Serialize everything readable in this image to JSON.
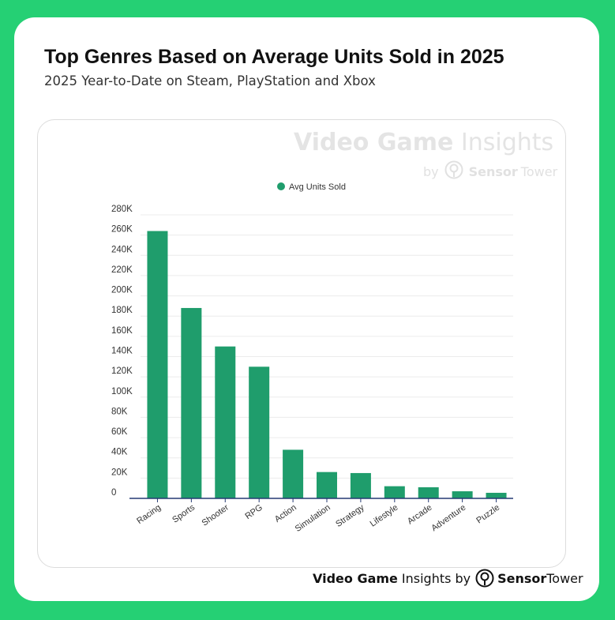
{
  "header": {
    "title": "Top Genres Based on Average Units Sold in 2025",
    "subtitle": "2025 Year-to-Date on Steam, PlayStation and Xbox"
  },
  "watermark": {
    "brand_bold": "Video Game",
    "brand_light": "Insights",
    "by": "by",
    "sensor": "Sensor",
    "tower": "Tower",
    "logo_icon": "sensor-tower-logo-icon"
  },
  "footer": {
    "brand_bold": "Video Game",
    "brand_light": "Insights",
    "by": "by",
    "sensor": "Sensor",
    "tower": "Tower",
    "logo_icon": "sensor-tower-logo-icon"
  },
  "colors": {
    "background": "#25d074",
    "bar": "#1f9d6c",
    "axis": "#253a73",
    "grid": "#ececec"
  },
  "chart_data": {
    "type": "bar",
    "title": "Top Genres Based on Average Units Sold in 2025",
    "subtitle": "2025 Year-to-Date on Steam, PlayStation and Xbox",
    "categories": [
      "Racing",
      "Sports",
      "Shooter",
      "RPG",
      "Action",
      "Simulation",
      "Strategy",
      "Lifestyle",
      "Arcade",
      "Adventure",
      "Puzzle"
    ],
    "series": [
      {
        "name": "Avg Units Sold",
        "values": [
          264000,
          188000,
          150000,
          130000,
          48000,
          26000,
          25000,
          12000,
          11000,
          7000,
          5500
        ]
      }
    ],
    "ylim": [
      0,
      280000
    ],
    "yticks": [
      0,
      20000,
      40000,
      60000,
      80000,
      100000,
      120000,
      140000,
      160000,
      180000,
      200000,
      220000,
      240000,
      260000,
      280000
    ],
    "ytick_labels": [
      "0",
      "20K",
      "40K",
      "60K",
      "80K",
      "100K",
      "120K",
      "140K",
      "160K",
      "180K",
      "200K",
      "220K",
      "240K",
      "260K",
      "280K"
    ],
    "xlabel": "",
    "ylabel": "",
    "grid": true,
    "legend": "top-center"
  }
}
